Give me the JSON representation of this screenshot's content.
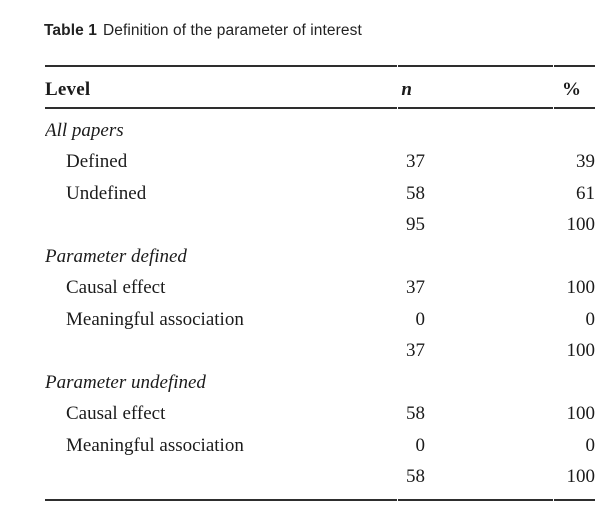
{
  "caption": {
    "label": "Table 1",
    "text": "Definition of the parameter of interest"
  },
  "table": {
    "columns": {
      "level": "Level",
      "n": "n",
      "pct": "%"
    },
    "rows": [
      {
        "label": "All papers",
        "type": "section",
        "n": "",
        "pct": ""
      },
      {
        "label": "Defined",
        "type": "data",
        "n": "37",
        "pct": "39"
      },
      {
        "label": "Undefined",
        "type": "data",
        "n": "58",
        "pct": "61"
      },
      {
        "label": "",
        "type": "total",
        "n": "95",
        "pct": "100"
      },
      {
        "label": "Parameter defined",
        "type": "section",
        "n": "",
        "pct": ""
      },
      {
        "label": "Causal effect",
        "type": "data",
        "n": "37",
        "pct": "100"
      },
      {
        "label": "Meaningful association",
        "type": "data",
        "n": "0",
        "pct": "0"
      },
      {
        "label": "",
        "type": "total",
        "n": "37",
        "pct": "100"
      },
      {
        "label": "Parameter undefined",
        "type": "section",
        "n": "",
        "pct": ""
      },
      {
        "label": "Causal effect",
        "type": "data",
        "n": "58",
        "pct": "100"
      },
      {
        "label": "Meaningful association",
        "type": "data",
        "n": "0",
        "pct": "0"
      },
      {
        "label": "",
        "type": "total",
        "n": "58",
        "pct": "100"
      }
    ]
  },
  "colors": {
    "text": "#1b1b1b",
    "rule": "#2e2e2e",
    "background": "#ffffff"
  }
}
